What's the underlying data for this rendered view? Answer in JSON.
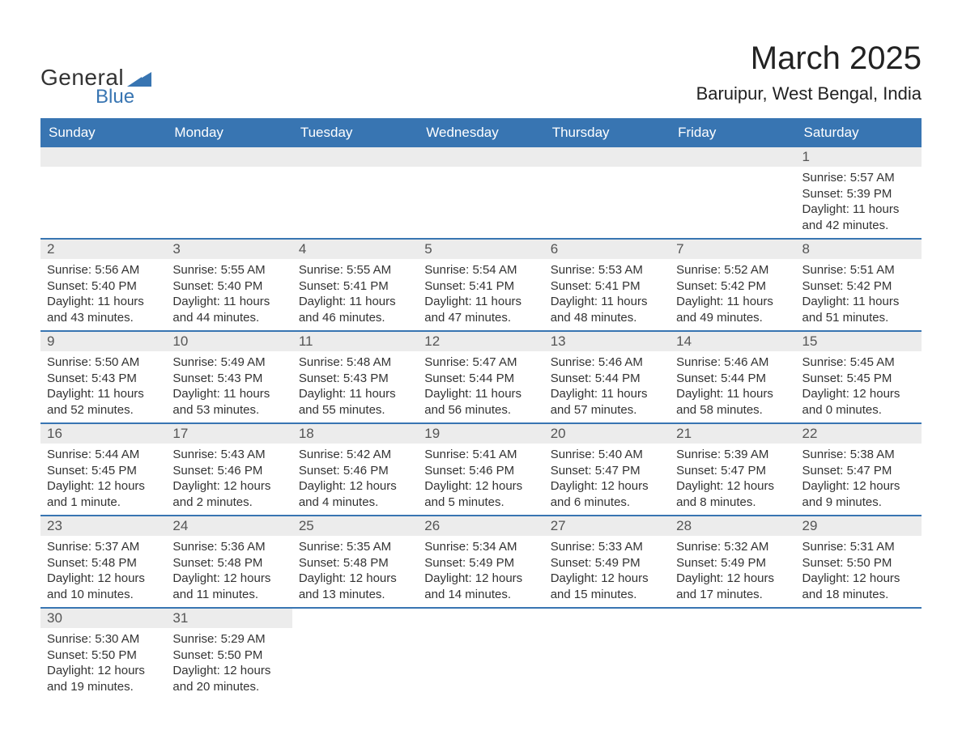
{
  "logo": {
    "text_general": "General",
    "text_blue": "Blue",
    "shape_color": "#3875b2"
  },
  "title": "March 2025",
  "location": "Baruipur, West Bengal, India",
  "colors": {
    "header_bg": "#3875b2",
    "header_text": "#ffffff",
    "daynum_bg": "#ececec",
    "body_text": "#333333",
    "week_border": "#3875b2",
    "page_bg": "#ffffff"
  },
  "day_names": [
    "Sunday",
    "Monday",
    "Tuesday",
    "Wednesday",
    "Thursday",
    "Friday",
    "Saturday"
  ],
  "weeks": [
    [
      {
        "day": "",
        "sunrise": "",
        "sunset": "",
        "daylight1": "",
        "daylight2": ""
      },
      {
        "day": "",
        "sunrise": "",
        "sunset": "",
        "daylight1": "",
        "daylight2": ""
      },
      {
        "day": "",
        "sunrise": "",
        "sunset": "",
        "daylight1": "",
        "daylight2": ""
      },
      {
        "day": "",
        "sunrise": "",
        "sunset": "",
        "daylight1": "",
        "daylight2": ""
      },
      {
        "day": "",
        "sunrise": "",
        "sunset": "",
        "daylight1": "",
        "daylight2": ""
      },
      {
        "day": "",
        "sunrise": "",
        "sunset": "",
        "daylight1": "",
        "daylight2": ""
      },
      {
        "day": "1",
        "sunrise": "Sunrise: 5:57 AM",
        "sunset": "Sunset: 5:39 PM",
        "daylight1": "Daylight: 11 hours",
        "daylight2": "and 42 minutes."
      }
    ],
    [
      {
        "day": "2",
        "sunrise": "Sunrise: 5:56 AM",
        "sunset": "Sunset: 5:40 PM",
        "daylight1": "Daylight: 11 hours",
        "daylight2": "and 43 minutes."
      },
      {
        "day": "3",
        "sunrise": "Sunrise: 5:55 AM",
        "sunset": "Sunset: 5:40 PM",
        "daylight1": "Daylight: 11 hours",
        "daylight2": "and 44 minutes."
      },
      {
        "day": "4",
        "sunrise": "Sunrise: 5:55 AM",
        "sunset": "Sunset: 5:41 PM",
        "daylight1": "Daylight: 11 hours",
        "daylight2": "and 46 minutes."
      },
      {
        "day": "5",
        "sunrise": "Sunrise: 5:54 AM",
        "sunset": "Sunset: 5:41 PM",
        "daylight1": "Daylight: 11 hours",
        "daylight2": "and 47 minutes."
      },
      {
        "day": "6",
        "sunrise": "Sunrise: 5:53 AM",
        "sunset": "Sunset: 5:41 PM",
        "daylight1": "Daylight: 11 hours",
        "daylight2": "and 48 minutes."
      },
      {
        "day": "7",
        "sunrise": "Sunrise: 5:52 AM",
        "sunset": "Sunset: 5:42 PM",
        "daylight1": "Daylight: 11 hours",
        "daylight2": "and 49 minutes."
      },
      {
        "day": "8",
        "sunrise": "Sunrise: 5:51 AM",
        "sunset": "Sunset: 5:42 PM",
        "daylight1": "Daylight: 11 hours",
        "daylight2": "and 51 minutes."
      }
    ],
    [
      {
        "day": "9",
        "sunrise": "Sunrise: 5:50 AM",
        "sunset": "Sunset: 5:43 PM",
        "daylight1": "Daylight: 11 hours",
        "daylight2": "and 52 minutes."
      },
      {
        "day": "10",
        "sunrise": "Sunrise: 5:49 AM",
        "sunset": "Sunset: 5:43 PM",
        "daylight1": "Daylight: 11 hours",
        "daylight2": "and 53 minutes."
      },
      {
        "day": "11",
        "sunrise": "Sunrise: 5:48 AM",
        "sunset": "Sunset: 5:43 PM",
        "daylight1": "Daylight: 11 hours",
        "daylight2": "and 55 minutes."
      },
      {
        "day": "12",
        "sunrise": "Sunrise: 5:47 AM",
        "sunset": "Sunset: 5:44 PM",
        "daylight1": "Daylight: 11 hours",
        "daylight2": "and 56 minutes."
      },
      {
        "day": "13",
        "sunrise": "Sunrise: 5:46 AM",
        "sunset": "Sunset: 5:44 PM",
        "daylight1": "Daylight: 11 hours",
        "daylight2": "and 57 minutes."
      },
      {
        "day": "14",
        "sunrise": "Sunrise: 5:46 AM",
        "sunset": "Sunset: 5:44 PM",
        "daylight1": "Daylight: 11 hours",
        "daylight2": "and 58 minutes."
      },
      {
        "day": "15",
        "sunrise": "Sunrise: 5:45 AM",
        "sunset": "Sunset: 5:45 PM",
        "daylight1": "Daylight: 12 hours",
        "daylight2": "and 0 minutes."
      }
    ],
    [
      {
        "day": "16",
        "sunrise": "Sunrise: 5:44 AM",
        "sunset": "Sunset: 5:45 PM",
        "daylight1": "Daylight: 12 hours",
        "daylight2": "and 1 minute."
      },
      {
        "day": "17",
        "sunrise": "Sunrise: 5:43 AM",
        "sunset": "Sunset: 5:46 PM",
        "daylight1": "Daylight: 12 hours",
        "daylight2": "and 2 minutes."
      },
      {
        "day": "18",
        "sunrise": "Sunrise: 5:42 AM",
        "sunset": "Sunset: 5:46 PM",
        "daylight1": "Daylight: 12 hours",
        "daylight2": "and 4 minutes."
      },
      {
        "day": "19",
        "sunrise": "Sunrise: 5:41 AM",
        "sunset": "Sunset: 5:46 PM",
        "daylight1": "Daylight: 12 hours",
        "daylight2": "and 5 minutes."
      },
      {
        "day": "20",
        "sunrise": "Sunrise: 5:40 AM",
        "sunset": "Sunset: 5:47 PM",
        "daylight1": "Daylight: 12 hours",
        "daylight2": "and 6 minutes."
      },
      {
        "day": "21",
        "sunrise": "Sunrise: 5:39 AM",
        "sunset": "Sunset: 5:47 PM",
        "daylight1": "Daylight: 12 hours",
        "daylight2": "and 8 minutes."
      },
      {
        "day": "22",
        "sunrise": "Sunrise: 5:38 AM",
        "sunset": "Sunset: 5:47 PM",
        "daylight1": "Daylight: 12 hours",
        "daylight2": "and 9 minutes."
      }
    ],
    [
      {
        "day": "23",
        "sunrise": "Sunrise: 5:37 AM",
        "sunset": "Sunset: 5:48 PM",
        "daylight1": "Daylight: 12 hours",
        "daylight2": "and 10 minutes."
      },
      {
        "day": "24",
        "sunrise": "Sunrise: 5:36 AM",
        "sunset": "Sunset: 5:48 PM",
        "daylight1": "Daylight: 12 hours",
        "daylight2": "and 11 minutes."
      },
      {
        "day": "25",
        "sunrise": "Sunrise: 5:35 AM",
        "sunset": "Sunset: 5:48 PM",
        "daylight1": "Daylight: 12 hours",
        "daylight2": "and 13 minutes."
      },
      {
        "day": "26",
        "sunrise": "Sunrise: 5:34 AM",
        "sunset": "Sunset: 5:49 PM",
        "daylight1": "Daylight: 12 hours",
        "daylight2": "and 14 minutes."
      },
      {
        "day": "27",
        "sunrise": "Sunrise: 5:33 AM",
        "sunset": "Sunset: 5:49 PM",
        "daylight1": "Daylight: 12 hours",
        "daylight2": "and 15 minutes."
      },
      {
        "day": "28",
        "sunrise": "Sunrise: 5:32 AM",
        "sunset": "Sunset: 5:49 PM",
        "daylight1": "Daylight: 12 hours",
        "daylight2": "and 17 minutes."
      },
      {
        "day": "29",
        "sunrise": "Sunrise: 5:31 AM",
        "sunset": "Sunset: 5:50 PM",
        "daylight1": "Daylight: 12 hours",
        "daylight2": "and 18 minutes."
      }
    ],
    [
      {
        "day": "30",
        "sunrise": "Sunrise: 5:30 AM",
        "sunset": "Sunset: 5:50 PM",
        "daylight1": "Daylight: 12 hours",
        "daylight2": "and 19 minutes."
      },
      {
        "day": "31",
        "sunrise": "Sunrise: 5:29 AM",
        "sunset": "Sunset: 5:50 PM",
        "daylight1": "Daylight: 12 hours",
        "daylight2": "and 20 minutes."
      },
      {
        "day": "",
        "sunrise": "",
        "sunset": "",
        "daylight1": "",
        "daylight2": ""
      },
      {
        "day": "",
        "sunrise": "",
        "sunset": "",
        "daylight1": "",
        "daylight2": ""
      },
      {
        "day": "",
        "sunrise": "",
        "sunset": "",
        "daylight1": "",
        "daylight2": ""
      },
      {
        "day": "",
        "sunrise": "",
        "sunset": "",
        "daylight1": "",
        "daylight2": ""
      },
      {
        "day": "",
        "sunrise": "",
        "sunset": "",
        "daylight1": "",
        "daylight2": ""
      }
    ]
  ]
}
